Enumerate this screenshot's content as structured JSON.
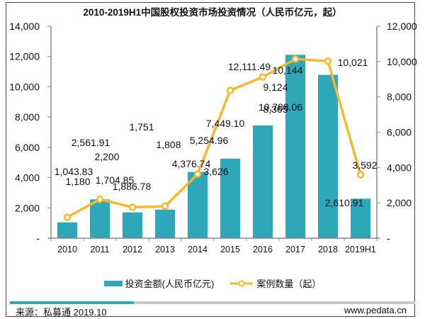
{
  "chart_data": {
    "type": "bar+line",
    "title": "2010-2019H1中国股权投资市场投资情况（人民币亿元，起）",
    "categories": [
      "2010",
      "2011",
      "2012",
      "2013",
      "2014",
      "2015",
      "2016",
      "2017",
      "2018",
      "2019H1"
    ],
    "series": [
      {
        "name": "投资金额(人民币亿元)",
        "type": "bar",
        "axis": "left",
        "color": "#2EA7B8",
        "values": [
          1043.83,
          2561.91,
          1704.85,
          1886.78,
          4376.74,
          5254.96,
          7449.1,
          12111.49,
          10788.06,
          2610.91
        ],
        "labels": [
          "1,043.83",
          "2,561.91",
          "1,704.85",
          "1,886.78",
          "4,376.74",
          "5,254.96",
          "7,449.10",
          "12,111.49",
          "10,788.06",
          "2,610.91"
        ]
      },
      {
        "name": "案例数量（起）",
        "type": "line",
        "axis": "right",
        "color": "#F5B82E",
        "values": [
          1180,
          2200,
          1751,
          1808,
          3626,
          8365,
          9124,
          10144,
          10021,
          3592
        ],
        "labels": [
          "1,180",
          "2,200",
          "1,751",
          "1,808",
          "3,626",
          "8,365",
          "9,124",
          "10,144",
          "10,021",
          "3,592"
        ]
      }
    ],
    "y_left": {
      "min": 0,
      "max": 14000,
      "step": 2000,
      "ticks": [
        "-",
        "2,000",
        "4,000",
        "6,000",
        "8,000",
        "10,000",
        "12,000",
        "14,000"
      ]
    },
    "y_right": {
      "min": 0,
      "max": 12000,
      "step": 2000,
      "ticks": [
        "-",
        "2,000",
        "4,000",
        "6,000",
        "8,000",
        "10,000",
        "12,000"
      ]
    },
    "xlabel": "",
    "ylabel": "",
    "grid": false,
    "legend_position": "bottom"
  },
  "legend": {
    "bar_label": "投资金额(人民币亿元)",
    "line_label": "案例数量（起）"
  },
  "footer": {
    "source": "来源：私募通 2019.10",
    "website": "www.pedata.cn",
    "accent_color": "#2EA7B8"
  }
}
